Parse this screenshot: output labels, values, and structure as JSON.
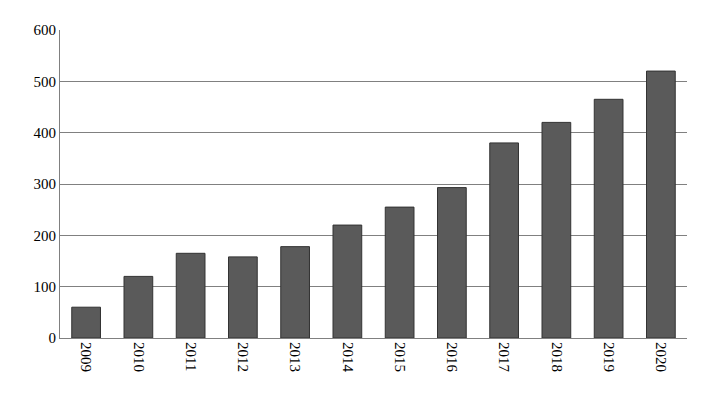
{
  "chart_data": {
    "type": "bar",
    "categories": [
      "2009",
      "2010",
      "2011",
      "2012",
      "2013",
      "2014",
      "2015",
      "2016",
      "2017",
      "2018",
      "2019",
      "2020"
    ],
    "values": [
      60,
      120,
      165,
      158,
      178,
      220,
      255,
      293,
      380,
      420,
      465,
      520
    ],
    "color": "#5a5a5a",
    "ylim": [
      0,
      600
    ],
    "yticks": [
      0,
      100,
      200,
      300,
      400,
      500,
      600
    ],
    "grid": true
  }
}
